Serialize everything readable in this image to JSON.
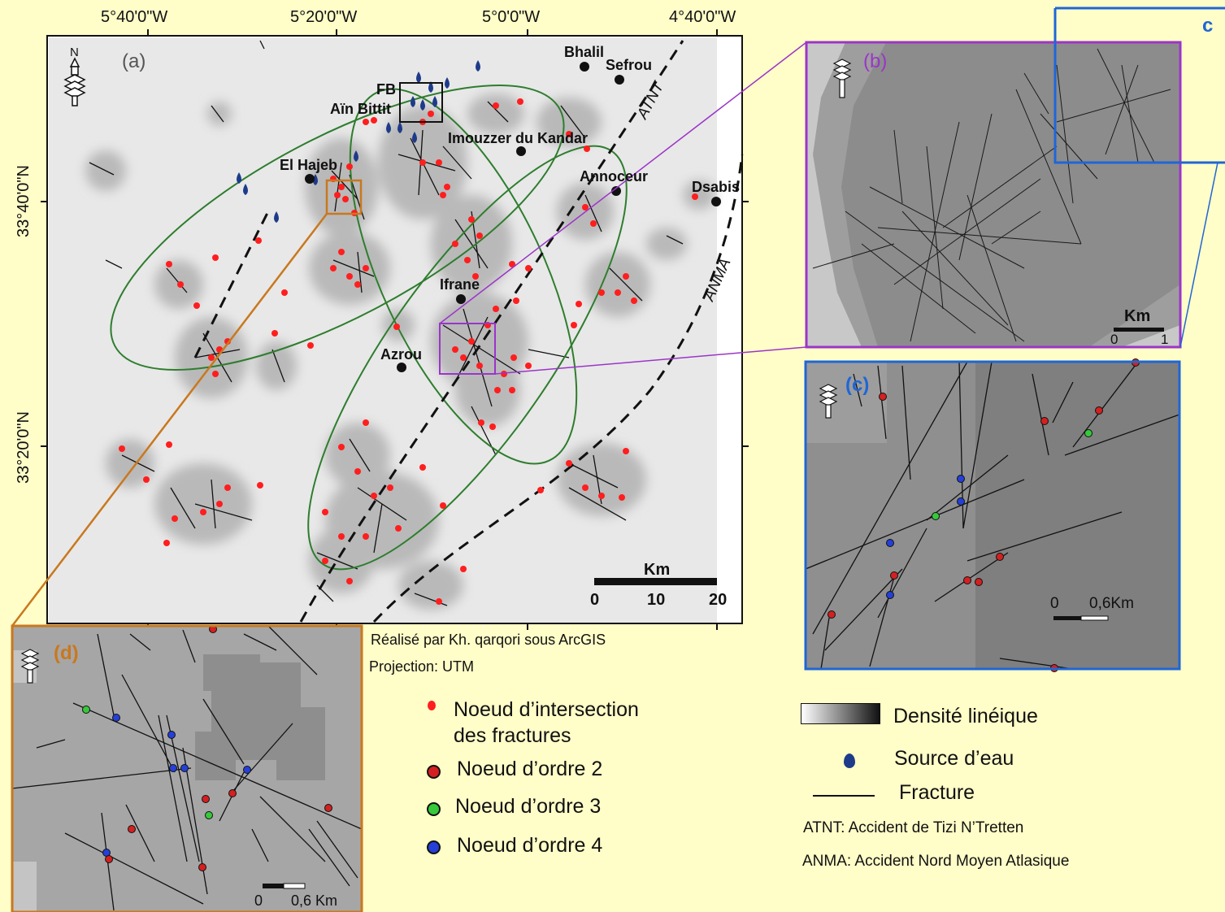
{
  "main_map": {
    "panel_label": "(a)",
    "lon_ticks": [
      "5°40'0\"W",
      "5°20'0\"W",
      "5°0'0\"W",
      "4°40'0\"W"
    ],
    "lat_ticks": [
      "33°40'0\"N",
      "33°20'0\"N"
    ],
    "north_label": "N",
    "places": {
      "bhalil": "Bhalil",
      "sefrou": "Sefrou",
      "fb": "FB",
      "ain_bittit": "Aïn Bittit",
      "imouzzer": "Imouzzer du Kandar",
      "el_hajeb": "El Hajeb",
      "annoceur": "Annoceur",
      "dsabis": "Dsabis",
      "ifrane": "Ifrane",
      "azrou": "Azrou"
    },
    "faults": {
      "atnt": "ATNT",
      "anma": "ANMA"
    },
    "scale": {
      "unit": "Km",
      "labels": [
        "0",
        "10",
        "20"
      ]
    }
  },
  "inset_b": {
    "panel_label": "(b)",
    "scale_unit": "Km",
    "scale_labels": [
      "0",
      "1"
    ]
  },
  "inset_c": {
    "panel_label": "(c)",
    "scale_labels": [
      "0",
      "0,6Km"
    ]
  },
  "inset_c_outline_label": "c",
  "inset_d": {
    "panel_label": "(d)",
    "scale_labels": [
      "0",
      "0,6 Km"
    ]
  },
  "credit": {
    "author": "Réalisé par Kh. qarqori sous ArcGIS",
    "projection": "Projection: UTM"
  },
  "legend": {
    "intersection_line1": "Noeud d’intersection",
    "intersection_line2": "des fractures",
    "order2": "Noeud d’ordre 2",
    "order3": "Noeud d’ordre 3",
    "order4": "Noeud d’ordre 4",
    "density": "Densité linéique",
    "water_source": "Source d’eau",
    "fracture": "Fracture",
    "atnt_note": "ATNT: Accident de Tizi N’Tretten",
    "anma_note": "ANMA: Accident Nord Moyen Atlasique"
  },
  "colors": {
    "node_intersection": "#ff1e1e",
    "node_order2": "#d42020",
    "node_order3": "#36c93a",
    "node_order4": "#2440d8",
    "water": "#1e3b8a",
    "ellipse": "#2e7d2e",
    "inset_b_frame": "#9b35c9",
    "inset_c_frame": "#1f66d6",
    "inset_d_frame": "#c9781e"
  }
}
